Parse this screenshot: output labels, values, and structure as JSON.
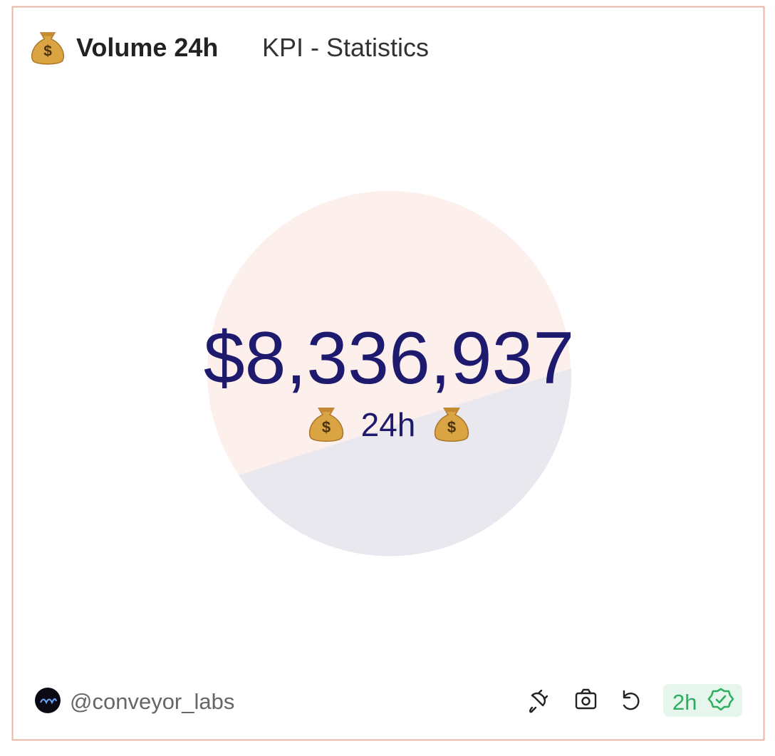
{
  "header": {
    "title": "Volume 24h",
    "subtitle": "KPI - Statistics"
  },
  "kpi": {
    "value": "$8,336,937",
    "label": "24h"
  },
  "footer": {
    "author": "@conveyor_labs",
    "freshness": "2h"
  }
}
